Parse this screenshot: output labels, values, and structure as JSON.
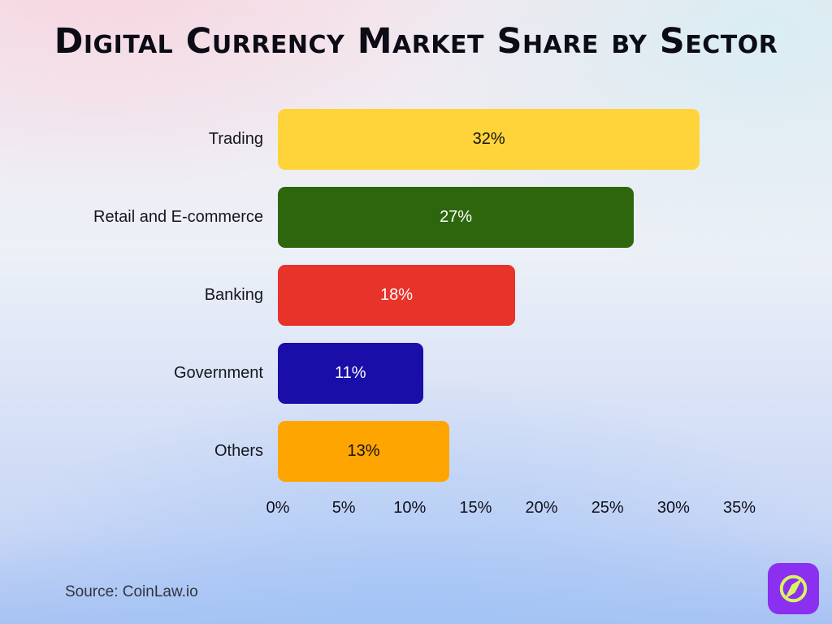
{
  "title": "Digital Currency Market Share by Sector",
  "source": "Source: CoinLaw.io",
  "chart_data": {
    "type": "bar",
    "orientation": "horizontal",
    "title": "Digital Currency Market Share by Sector",
    "categories": [
      "Trading",
      "Retail and E-commerce",
      "Banking",
      "Government",
      "Others"
    ],
    "values": [
      32,
      27,
      18,
      11,
      13
    ],
    "value_labels": [
      "32%",
      "27%",
      "18%",
      "11%",
      "13%"
    ],
    "bar_colors": [
      "#FFD43B",
      "#2D660D",
      "#E8332A",
      "#1A0EA8",
      "#FFA502"
    ],
    "value_label_colors": [
      "#111111",
      "#FFFFFF",
      "#FFFFFF",
      "#FFFFFF",
      "#111111"
    ],
    "xlim": [
      0,
      35
    ],
    "x_ticks": [
      "0%",
      "5%",
      "10%",
      "15%",
      "20%",
      "25%",
      "30%",
      "35%"
    ],
    "x_tick_values": [
      0,
      5,
      10,
      15,
      20,
      25,
      30,
      35
    ],
    "xlabel": "",
    "ylabel": "",
    "grid": false,
    "legend": "none"
  },
  "logo": {
    "background_color": "#8B2FF0",
    "glyph_color": "#D9F462",
    "glyph": "compass-leaf"
  }
}
